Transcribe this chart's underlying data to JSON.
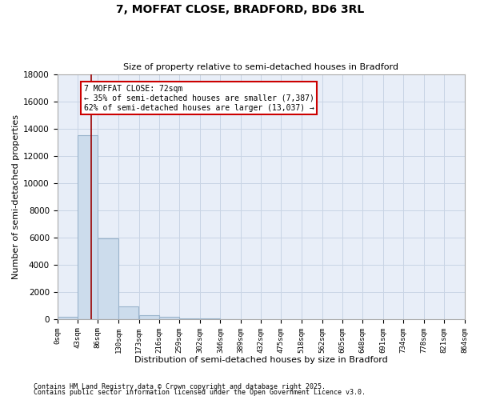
{
  "title_line1": "7, MOFFAT CLOSE, BRADFORD, BD6 3RL",
  "title_line2": "Size of property relative to semi-detached houses in Bradford",
  "xlabel": "Distribution of semi-detached houses by size in Bradford",
  "ylabel": "Number of semi-detached properties",
  "footnote1": "Contains HM Land Registry data © Crown copyright and database right 2025.",
  "footnote2": "Contains public sector information licensed under the Open Government Licence v3.0.",
  "annotation_line1": "7 MOFFAT CLOSE: 72sqm",
  "annotation_line2": "← 35% of semi-detached houses are smaller (7,387)",
  "annotation_line3": "62% of semi-detached houses are larger (13,037) →",
  "property_size": 72,
  "bin_edges": [
    0,
    43,
    86,
    130,
    173,
    216,
    259,
    302,
    346,
    389,
    432,
    475,
    518,
    562,
    605,
    648,
    691,
    734,
    778,
    821,
    864
  ],
  "bar_heights": [
    190,
    13500,
    5900,
    950,
    310,
    145,
    75,
    30,
    5,
    0,
    0,
    0,
    0,
    0,
    0,
    0,
    0,
    0,
    0,
    0
  ],
  "bar_color": "#ccdcec",
  "bar_edge_color": "#9ab4cc",
  "red_line_color": "#990000",
  "annotation_box_color": "#cc0000",
  "grid_color": "#c8d4e4",
  "bg_color": "#e8eef8",
  "ylim": [
    0,
    18000
  ],
  "yticks": [
    0,
    2000,
    4000,
    6000,
    8000,
    10000,
    12000,
    14000,
    16000,
    18000
  ]
}
